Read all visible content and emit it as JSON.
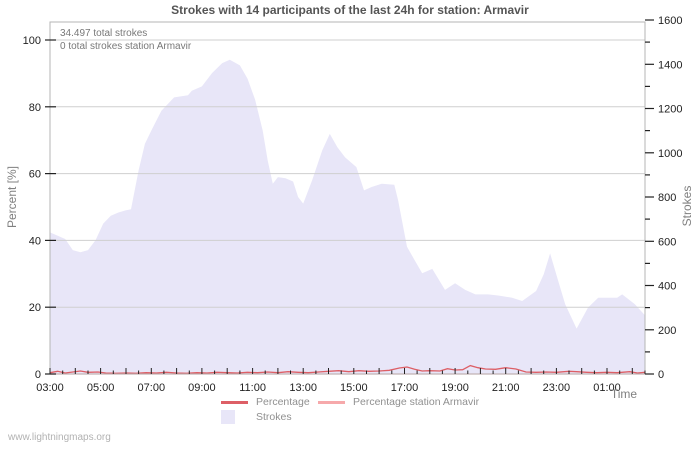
{
  "footer": {
    "watermark": "www.lightningmaps.org"
  },
  "colors": {
    "background": "#ffffff",
    "plot_border": "#b5b5b5",
    "gridline": "#cfcfcf",
    "tick_mark": "#222222",
    "tick_label": "#222222",
    "title_text": "#555555",
    "annotation_text": "#787878",
    "legend_text": "#909090",
    "percentage_line": "#dd5f66",
    "station_line": "#f6a9ab",
    "strokes_fill": "#e8e6f8"
  },
  "chart_data": {
    "type": "area",
    "title": "Strokes with 14 participants of the last 24h for station: Armavir",
    "annotations": [
      "34.497 total strokes",
      "0 total strokes station Armavir"
    ],
    "grid": true,
    "legend_position": "bottom",
    "x_axis": {
      "label": "Time",
      "min_hour": 3,
      "max_hour": 26.5,
      "tick_hours": [
        3,
        5,
        7,
        9,
        11,
        13,
        15,
        17,
        19,
        21,
        23,
        25
      ],
      "tick_labels": [
        "03:00",
        "05:00",
        "07:00",
        "09:00",
        "11:00",
        "13:00",
        "15:00",
        "17:00",
        "19:00",
        "21:00",
        "23:00",
        "01:00"
      ],
      "minor_step_hours": 0.5
    },
    "y_left_axis": {
      "label": "Percent  [%]",
      "min": 0,
      "max": 100,
      "ticks": [
        0,
        20,
        40,
        60,
        80,
        100
      ]
    },
    "y_right_axis": {
      "label": "Strokes",
      "min": 0,
      "max": 1600,
      "ticks": [
        0,
        200,
        400,
        600,
        800,
        1000,
        1200,
        1400,
        1600
      ],
      "minor_step": 100
    },
    "series": [
      {
        "name": "Percentage",
        "type": "line",
        "axis": "left",
        "color": "#dd5f66",
        "points": [
          [
            3.0,
            0.4
          ],
          [
            3.3,
            0.8
          ],
          [
            3.6,
            0.3
          ],
          [
            3.9,
            0.6
          ],
          [
            4.2,
            0.9
          ],
          [
            4.5,
            0.5
          ],
          [
            4.9,
            0.6
          ],
          [
            5.2,
            0.3
          ],
          [
            5.6,
            0.2
          ],
          [
            6.0,
            0.3
          ],
          [
            6.4,
            0.2
          ],
          [
            6.8,
            0.4
          ],
          [
            7.2,
            0.3
          ],
          [
            7.6,
            0.5
          ],
          [
            8.0,
            0.3
          ],
          [
            8.4,
            0.2
          ],
          [
            8.8,
            0.4
          ],
          [
            9.2,
            0.3
          ],
          [
            9.6,
            0.5
          ],
          [
            10.0,
            0.4
          ],
          [
            10.4,
            0.3
          ],
          [
            10.8,
            0.5
          ],
          [
            11.2,
            0.4
          ],
          [
            11.6,
            0.6
          ],
          [
            12.0,
            0.4
          ],
          [
            12.4,
            0.7
          ],
          [
            12.8,
            0.5
          ],
          [
            13.2,
            0.4
          ],
          [
            13.6,
            0.6
          ],
          [
            14.0,
            0.8
          ],
          [
            14.4,
            1.0
          ],
          [
            14.8,
            0.7
          ],
          [
            15.2,
            1.0
          ],
          [
            15.6,
            0.8
          ],
          [
            16.0,
            0.9
          ],
          [
            16.4,
            1.1
          ],
          [
            16.8,
            1.8
          ],
          [
            17.1,
            2.1
          ],
          [
            17.4,
            1.4
          ],
          [
            17.7,
            0.9
          ],
          [
            18.0,
            1.0
          ],
          [
            18.4,
            0.9
          ],
          [
            18.7,
            1.6
          ],
          [
            19.0,
            1.2
          ],
          [
            19.3,
            1.3
          ],
          [
            19.6,
            2.5
          ],
          [
            19.9,
            1.9
          ],
          [
            20.2,
            1.5
          ],
          [
            20.6,
            1.4
          ],
          [
            21.0,
            1.9
          ],
          [
            21.4,
            1.5
          ],
          [
            21.8,
            0.6
          ],
          [
            22.2,
            0.5
          ],
          [
            22.6,
            0.6
          ],
          [
            23.0,
            0.5
          ],
          [
            23.5,
            0.8
          ],
          [
            23.8,
            0.7
          ],
          [
            24.2,
            0.5
          ],
          [
            24.6,
            0.4
          ],
          [
            25.0,
            0.5
          ],
          [
            25.4,
            0.4
          ],
          [
            25.9,
            0.7
          ],
          [
            26.2,
            0.3
          ],
          [
            26.5,
            0.5
          ]
        ]
      },
      {
        "name": "Percentage station Armavir",
        "type": "line",
        "axis": "left",
        "color": "#f6a9ab",
        "points": [
          [
            3.0,
            0
          ],
          [
            26.5,
            0
          ]
        ]
      },
      {
        "name": "Strokes",
        "type": "area",
        "axis": "right",
        "color": "#e8e6f8",
        "points": [
          [
            3.0,
            640
          ],
          [
            3.6,
            610
          ],
          [
            3.9,
            560
          ],
          [
            4.2,
            550
          ],
          [
            4.5,
            560
          ],
          [
            4.8,
            605
          ],
          [
            5.1,
            680
          ],
          [
            5.4,
            715
          ],
          [
            5.7,
            730
          ],
          [
            6.0,
            740
          ],
          [
            6.2,
            745
          ],
          [
            6.5,
            920
          ],
          [
            6.75,
            1040
          ],
          [
            7.0,
            1100
          ],
          [
            7.4,
            1190
          ],
          [
            7.9,
            1250
          ],
          [
            8.45,
            1260
          ],
          [
            8.6,
            1280
          ],
          [
            9.0,
            1300
          ],
          [
            9.4,
            1360
          ],
          [
            9.8,
            1405
          ],
          [
            10.1,
            1420
          ],
          [
            10.5,
            1395
          ],
          [
            10.8,
            1335
          ],
          [
            11.1,
            1240
          ],
          [
            11.4,
            1100
          ],
          [
            11.6,
            965
          ],
          [
            11.8,
            860
          ],
          [
            12.0,
            890
          ],
          [
            12.3,
            885
          ],
          [
            12.6,
            870
          ],
          [
            12.8,
            800
          ],
          [
            13.0,
            770
          ],
          [
            13.35,
            875
          ],
          [
            13.75,
            1010
          ],
          [
            14.05,
            1085
          ],
          [
            14.35,
            1025
          ],
          [
            14.65,
            980
          ],
          [
            15.1,
            935
          ],
          [
            15.4,
            830
          ],
          [
            15.7,
            845
          ],
          [
            16.1,
            860
          ],
          [
            16.6,
            855
          ],
          [
            16.75,
            785
          ],
          [
            17.1,
            575
          ],
          [
            17.4,
            515
          ],
          [
            17.7,
            455
          ],
          [
            18.1,
            475
          ],
          [
            18.6,
            380
          ],
          [
            19.0,
            410
          ],
          [
            19.4,
            380
          ],
          [
            19.8,
            360
          ],
          [
            20.3,
            360
          ],
          [
            20.7,
            355
          ],
          [
            21.25,
            345
          ],
          [
            21.65,
            330
          ],
          [
            22.2,
            375
          ],
          [
            22.5,
            450
          ],
          [
            22.75,
            545
          ],
          [
            23.1,
            410
          ],
          [
            23.35,
            315
          ],
          [
            23.8,
            205
          ],
          [
            24.25,
            300
          ],
          [
            24.65,
            345
          ],
          [
            25.0,
            345
          ],
          [
            25.4,
            345
          ],
          [
            25.6,
            360
          ],
          [
            26.1,
            315
          ],
          [
            26.5,
            265
          ]
        ]
      }
    ]
  }
}
